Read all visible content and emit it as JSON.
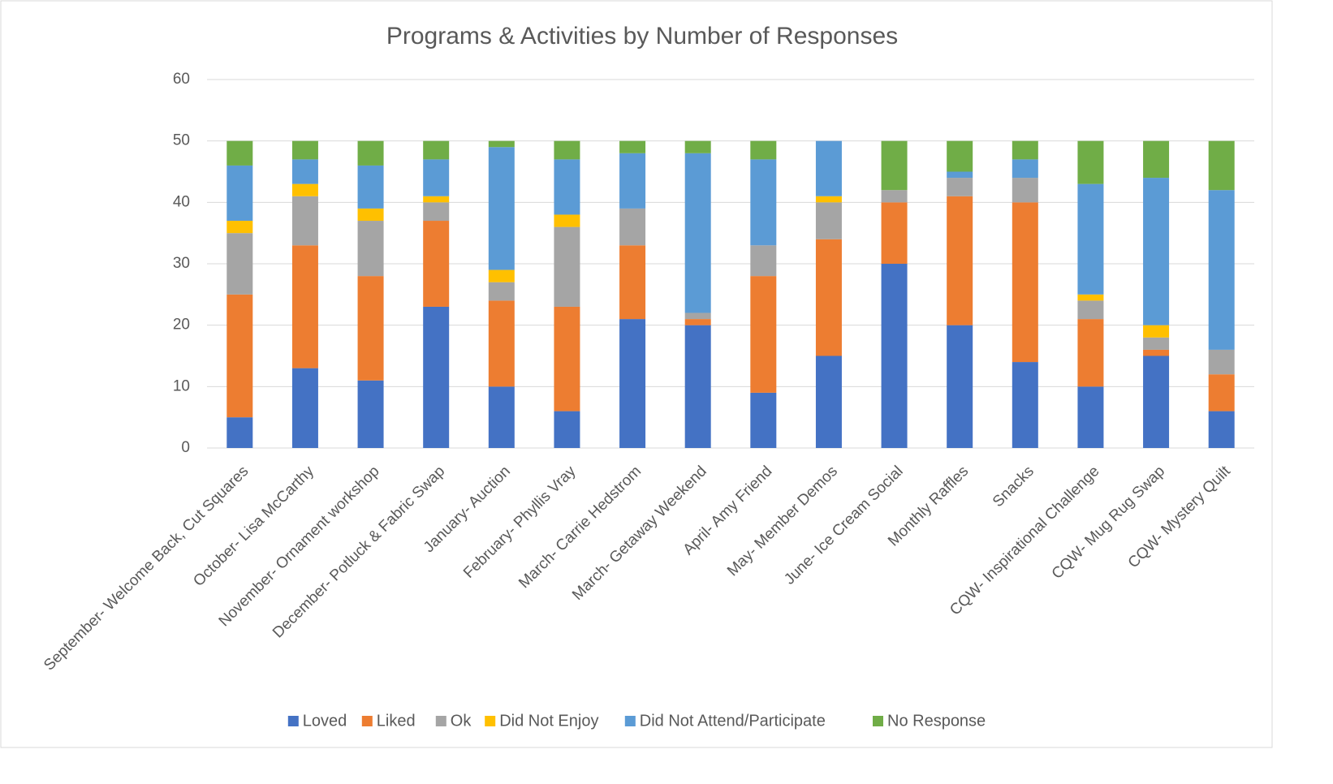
{
  "chart_data": {
    "type": "stacked_bar",
    "title": "Programs & Activities by Number of Responses",
    "categories": [
      "September- Welcome Back, Cut Squares",
      "October- Lisa McCarthy",
      "November- Ornament workshop",
      "December- Potluck & Fabric Swap",
      "January- Auction",
      "February-  Phyllis Vray",
      "March- Carrie Hedstrom",
      "March- Getaway Weekend",
      "April- Amy Friend",
      "May- Member Demos",
      "June- Ice Cream Social",
      "Monthly Raffles",
      "Snacks",
      "CQW- Inspirational Challenge",
      "CQW- Mug Rug Swap",
      "CQW- Mystery Quilt"
    ],
    "series": [
      {
        "name": "Loved",
        "color": "#4472c4",
        "values": [
          5,
          13,
          11,
          23,
          10,
          6,
          21,
          20,
          9,
          15,
          30,
          20,
          14,
          10,
          15,
          6
        ]
      },
      {
        "name": "Liked",
        "color": "#ed7d31",
        "values": [
          20,
          20,
          17,
          14,
          14,
          17,
          12,
          1,
          19,
          19,
          10,
          21,
          26,
          11,
          1,
          6
        ]
      },
      {
        "name": "Ok",
        "color": "#a5a5a5",
        "values": [
          10,
          8,
          9,
          3,
          3,
          13,
          6,
          1,
          5,
          6,
          2,
          3,
          4,
          3,
          2,
          4
        ]
      },
      {
        "name": "Did Not Enjoy",
        "color": "#ffc000",
        "values": [
          2,
          2,
          2,
          1,
          2,
          2,
          0,
          0,
          0,
          1,
          0,
          0,
          0,
          1,
          2,
          0
        ]
      },
      {
        "name": "Did Not Attend/Participate",
        "color": "#5b9bd5",
        "values": [
          9,
          4,
          7,
          6,
          20,
          9,
          9,
          26,
          14,
          9,
          0,
          1,
          3,
          18,
          24,
          26
        ]
      },
      {
        "name": "No Response",
        "color": "#70ad47",
        "values": [
          4,
          3,
          4,
          3,
          1,
          3,
          2,
          2,
          3,
          0,
          8,
          5,
          3,
          7,
          6,
          8
        ]
      }
    ],
    "ylim": [
      0,
      60
    ],
    "yticks": [
      0,
      10,
      20,
      30,
      40,
      50,
      60
    ],
    "grid": true
  }
}
